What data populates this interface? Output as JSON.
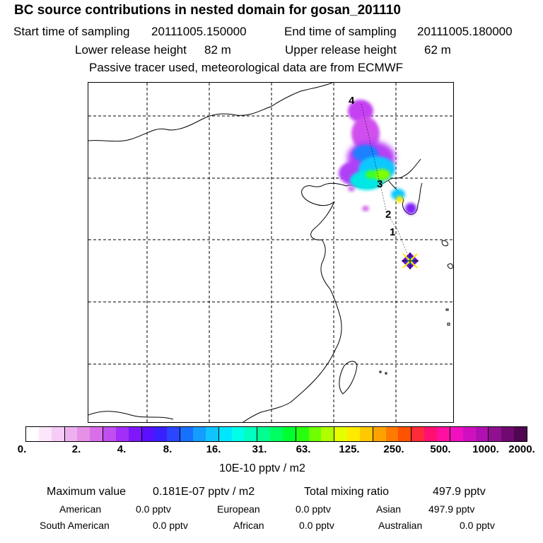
{
  "header": {
    "title": "BC  source contributions in nested domain for gosan_201110",
    "start_label": "Start time of sampling",
    "start_value": "20111005.150000",
    "end_label": "End time of sampling",
    "end_value": "20111005.180000",
    "lower_label": "Lower release height",
    "lower_value": "82 m",
    "upper_label": "Upper release height",
    "upper_value": "62 m",
    "note": "Passive tracer used, meteorological data are from ECMWF"
  },
  "map": {
    "track_labels": [
      "1",
      "2",
      "3",
      "4"
    ],
    "receptor_icon": "receptor-star-icon"
  },
  "colorbar": {
    "colors": [
      "#ffffff",
      "#fbe6fb",
      "#f5ccf5",
      "#eeb0ee",
      "#e690e6",
      "#d86ee8",
      "#c04ef0",
      "#a22ef7",
      "#7e18fb",
      "#5a10ff",
      "#3a20ff",
      "#2a46ff",
      "#1870ff",
      "#149cff",
      "#10c4ff",
      "#00e6ff",
      "#00ffe8",
      "#00ffc0",
      "#00ff90",
      "#00ff60",
      "#00ff30",
      "#28ff10",
      "#70ff00",
      "#b0ff00",
      "#e6ff00",
      "#ffea00",
      "#ffc800",
      "#ffa200",
      "#ff7a00",
      "#ff5200",
      "#ff2a3a",
      "#ff1070",
      "#ff10a0",
      "#f010c0",
      "#d010c0",
      "#b010b0",
      "#901090",
      "#700a70",
      "#500650"
    ],
    "ticks": [
      "0.",
      "2.",
      "4.",
      "8.",
      "16.",
      "31.",
      "63.",
      "125.",
      "250.",
      "500.",
      "1000.",
      "2000."
    ],
    "units": "10E-10 pptv / m2"
  },
  "summary": {
    "max_label": "Maximum value",
    "max_value": "0.181E-07 pptv / m2",
    "total_label": "Total mixing ratio",
    "total_value": "497.9 pptv",
    "regions": [
      {
        "name": "American",
        "value": "0.0 pptv"
      },
      {
        "name": "European",
        "value": "0.0 pptv"
      },
      {
        "name": "Asian",
        "value": "497.9 pptv"
      },
      {
        "name": "South American",
        "value": "0.0 pptv"
      },
      {
        "name": "African",
        "value": "0.0 pptv"
      },
      {
        "name": "Australian",
        "value": "0.0 pptv"
      }
    ]
  }
}
